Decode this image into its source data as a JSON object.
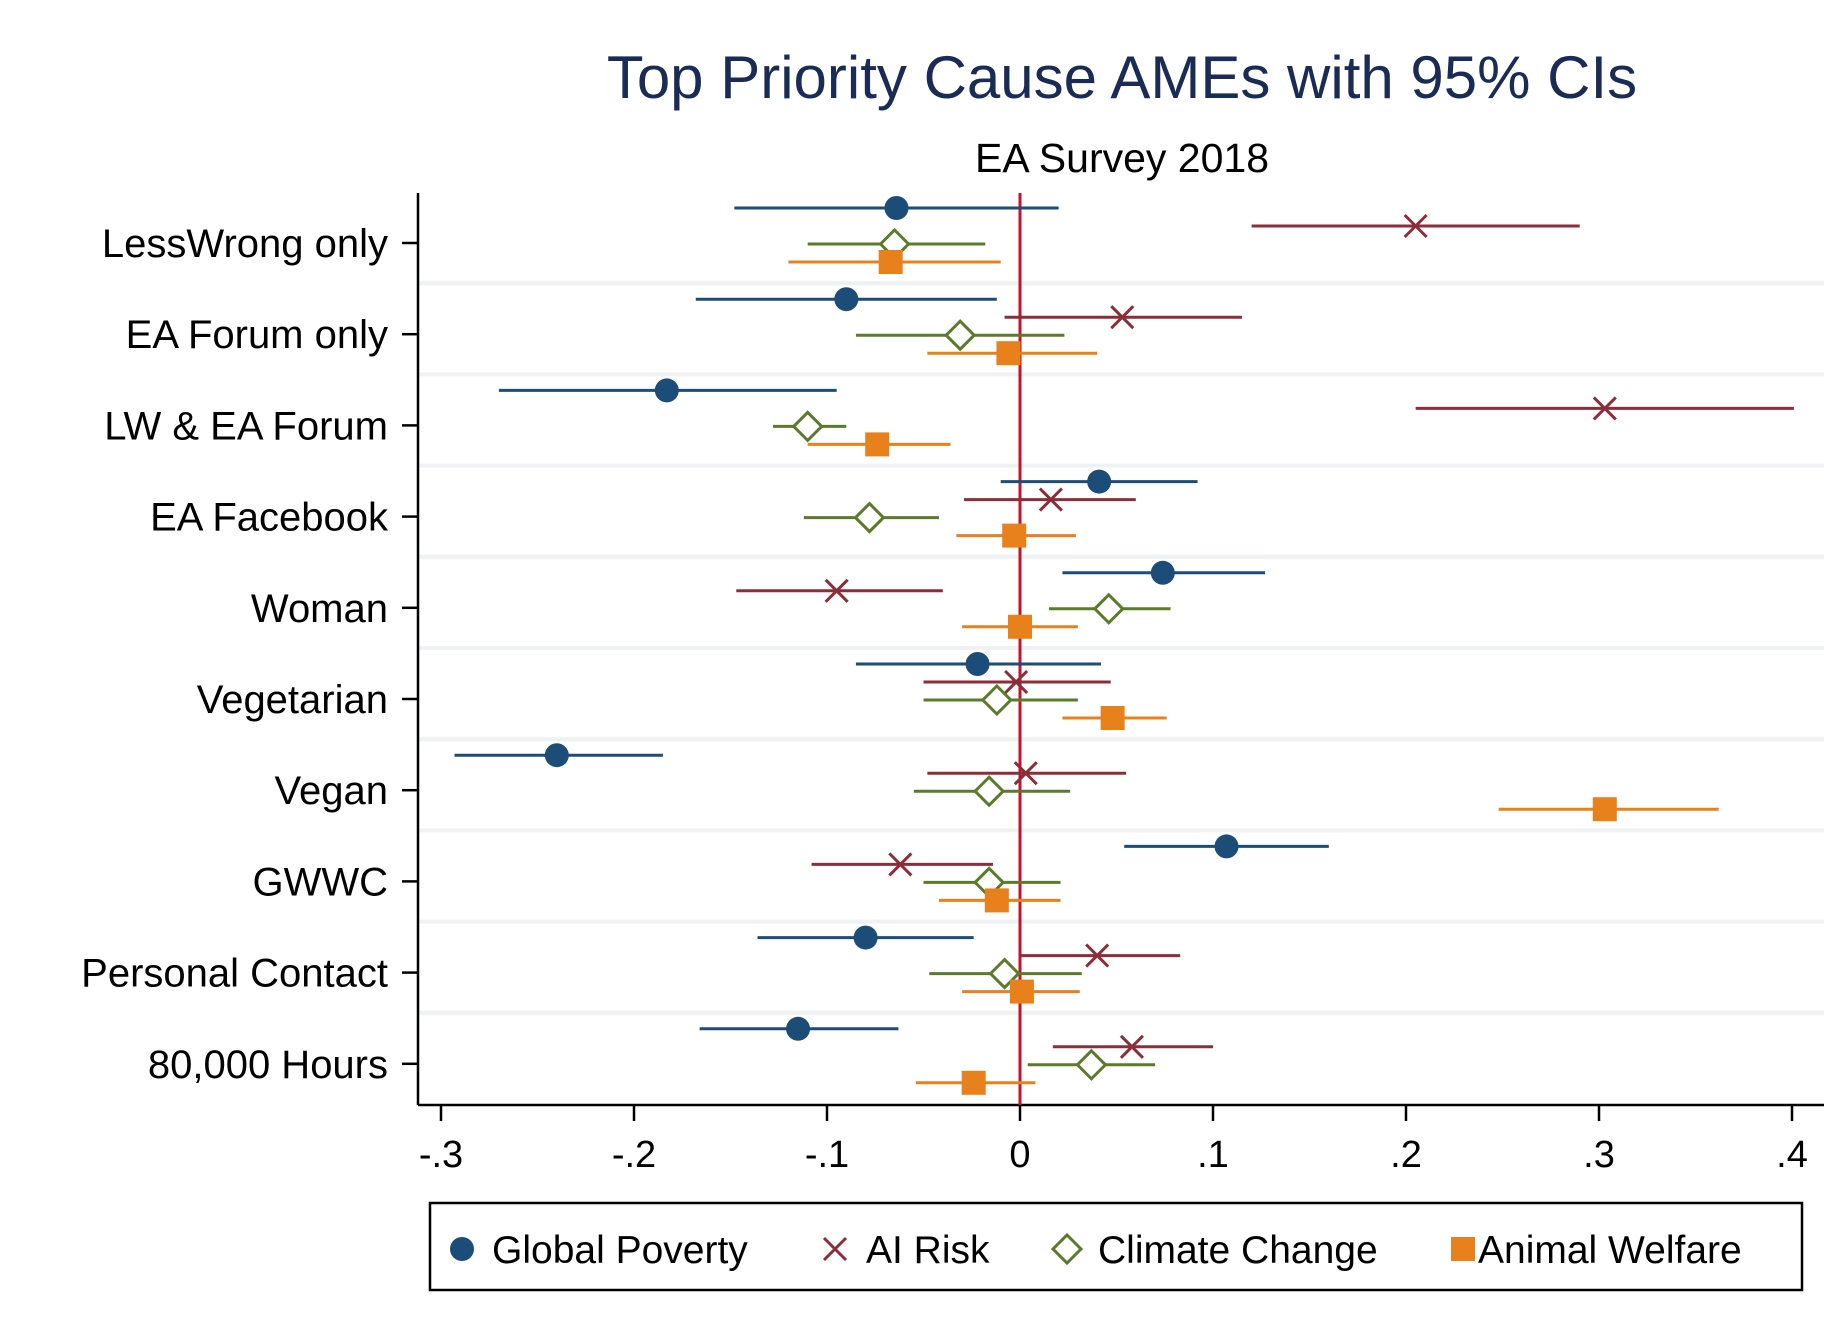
{
  "chart_data": {
    "type": "scatter",
    "title": "Top Priority Cause AMEs with 95% CIs",
    "subtitle": "EA Survey 2018",
    "xlabel": "",
    "ylabel": "",
    "xlim": [
      -0.31,
      0.41
    ],
    "xticks": [
      -0.3,
      -0.2,
      -0.1,
      0,
      0.1,
      0.2,
      0.3,
      0.4
    ],
    "xtick_labels": [
      "-.3",
      "-.2",
      "-.1",
      "0",
      ".1",
      ".2",
      ".3",
      ".4"
    ],
    "reference_line": 0,
    "categories": [
      "LessWrong only",
      "EA Forum only",
      "LW & EA Forum",
      "EA Facebook",
      "Woman",
      "Vegetarian",
      "Vegan",
      "GWWC",
      "Personal Contact",
      "80,000 Hours"
    ],
    "grid": true,
    "legend_position": "bottom",
    "series": [
      {
        "name": "Global Poverty",
        "marker": "circle",
        "color": "#1b4d78",
        "points": [
          {
            "category": "LessWrong only",
            "estimate": -0.064,
            "ci": [
              -0.148,
              0.02
            ]
          },
          {
            "category": "EA Forum only",
            "estimate": -0.09,
            "ci": [
              -0.168,
              -0.012
            ]
          },
          {
            "category": "LW & EA Forum",
            "estimate": -0.183,
            "ci": [
              -0.27,
              -0.095
            ]
          },
          {
            "category": "EA Facebook",
            "estimate": 0.041,
            "ci": [
              -0.01,
              0.092
            ]
          },
          {
            "category": "Woman",
            "estimate": 0.074,
            "ci": [
              0.022,
              0.127
            ]
          },
          {
            "category": "Vegetarian",
            "estimate": -0.022,
            "ci": [
              -0.085,
              0.042
            ]
          },
          {
            "category": "Vegan",
            "estimate": -0.24,
            "ci": [
              -0.293,
              -0.185
            ]
          },
          {
            "category": "GWWC",
            "estimate": 0.107,
            "ci": [
              0.054,
              0.16
            ]
          },
          {
            "category": "Personal Contact",
            "estimate": -0.08,
            "ci": [
              -0.136,
              -0.024
            ]
          },
          {
            "category": "80,000 Hours",
            "estimate": -0.115,
            "ci": [
              -0.166,
              -0.063
            ]
          }
        ]
      },
      {
        "name": "AI Risk",
        "marker": "x",
        "color": "#8b2e3a",
        "points": [
          {
            "category": "LessWrong only",
            "estimate": 0.205,
            "ci": [
              0.12,
              0.29
            ]
          },
          {
            "category": "EA Forum only",
            "estimate": 0.053,
            "ci": [
              -0.008,
              0.115
            ]
          },
          {
            "category": "LW & EA Forum",
            "estimate": 0.303,
            "ci": [
              0.205,
              0.401
            ]
          },
          {
            "category": "EA Facebook",
            "estimate": 0.016,
            "ci": [
              -0.029,
              0.06
            ]
          },
          {
            "category": "Woman",
            "estimate": -0.095,
            "ci": [
              -0.147,
              -0.04
            ]
          },
          {
            "category": "Vegetarian",
            "estimate": -0.002,
            "ci": [
              -0.05,
              0.047
            ]
          },
          {
            "category": "Vegan",
            "estimate": 0.003,
            "ci": [
              -0.048,
              0.055
            ]
          },
          {
            "category": "GWWC",
            "estimate": -0.062,
            "ci": [
              -0.108,
              -0.014
            ]
          },
          {
            "category": "Personal Contact",
            "estimate": 0.04,
            "ci": [
              0.0,
              0.083
            ]
          },
          {
            "category": "80,000 Hours",
            "estimate": 0.058,
            "ci": [
              0.017,
              0.1
            ]
          }
        ]
      },
      {
        "name": "Climate Change",
        "marker": "diamond",
        "color": "#5b7a2a",
        "points": [
          {
            "category": "LessWrong only",
            "estimate": -0.065,
            "ci": [
              -0.11,
              -0.018
            ]
          },
          {
            "category": "EA Forum only",
            "estimate": -0.031,
            "ci": [
              -0.085,
              0.023
            ]
          },
          {
            "category": "LW & EA Forum",
            "estimate": -0.11,
            "ci": [
              -0.128,
              -0.09
            ]
          },
          {
            "category": "EA Facebook",
            "estimate": -0.078,
            "ci": [
              -0.112,
              -0.042
            ]
          },
          {
            "category": "Woman",
            "estimate": 0.046,
            "ci": [
              0.015,
              0.078
            ]
          },
          {
            "category": "Vegetarian",
            "estimate": -0.012,
            "ci": [
              -0.05,
              0.03
            ]
          },
          {
            "category": "Vegan",
            "estimate": -0.016,
            "ci": [
              -0.055,
              0.026
            ]
          },
          {
            "category": "GWWC",
            "estimate": -0.016,
            "ci": [
              -0.05,
              0.021
            ]
          },
          {
            "category": "Personal Contact",
            "estimate": -0.008,
            "ci": [
              -0.047,
              0.032
            ]
          },
          {
            "category": "80,000 Hours",
            "estimate": 0.037,
            "ci": [
              0.004,
              0.07
            ]
          }
        ]
      },
      {
        "name": "Animal Welfare",
        "marker": "square",
        "color": "#e8811c",
        "points": [
          {
            "category": "LessWrong only",
            "estimate": -0.067,
            "ci": [
              -0.12,
              -0.01
            ]
          },
          {
            "category": "EA Forum only",
            "estimate": -0.006,
            "ci": [
              -0.048,
              0.04
            ]
          },
          {
            "category": "LW & EA Forum",
            "estimate": -0.074,
            "ci": [
              -0.11,
              -0.036
            ]
          },
          {
            "category": "EA Facebook",
            "estimate": -0.003,
            "ci": [
              -0.033,
              0.029
            ]
          },
          {
            "category": "Woman",
            "estimate": 0.0,
            "ci": [
              -0.03,
              0.03
            ]
          },
          {
            "category": "Vegetarian",
            "estimate": 0.048,
            "ci": [
              0.022,
              0.076
            ]
          },
          {
            "category": "Vegan",
            "estimate": 0.303,
            "ci": [
              0.248,
              0.362
            ]
          },
          {
            "category": "GWWC",
            "estimate": -0.012,
            "ci": [
              -0.042,
              0.021
            ]
          },
          {
            "category": "Personal Contact",
            "estimate": 0.001,
            "ci": [
              -0.03,
              0.031
            ]
          },
          {
            "category": "80,000 Hours",
            "estimate": -0.024,
            "ci": [
              -0.054,
              0.008
            ]
          }
        ]
      }
    ]
  },
  "colors": {
    "reference_line": "#c8102e",
    "gridline": "#eef2f5",
    "title": "#1a2b55"
  }
}
